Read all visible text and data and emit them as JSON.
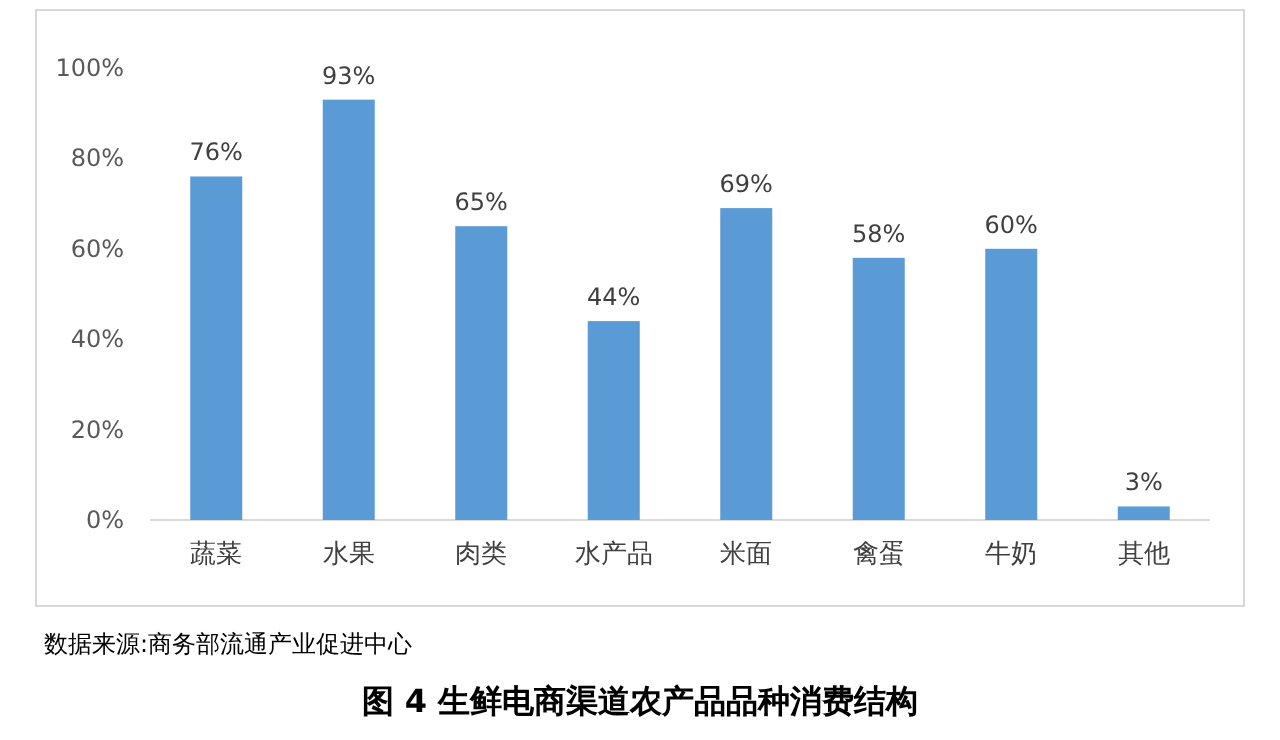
{
  "chart_data": {
    "type": "bar",
    "title": "图 4 生鲜电商渠道农产品品种消费结构",
    "categories": [
      "蔬菜",
      "水果",
      "肉类",
      "水产品",
      "米面",
      "禽蛋",
      "牛奶",
      "其他"
    ],
    "values": [
      76,
      93,
      65,
      44,
      69,
      58,
      60,
      3
    ],
    "color": "#5b9bd5",
    "ylim": [
      0,
      100
    ],
    "yticks": [
      {
        "value": 0,
        "label": "0%"
      },
      {
        "value": 20,
        "label": "20%"
      },
      {
        "value": 40,
        "label": "40%"
      },
      {
        "value": 60,
        "label": "60%"
      },
      {
        "value": 80,
        "label": "80%"
      },
      {
        "value": 100,
        "label": "100%"
      }
    ],
    "value_labels": [
      "76%",
      "93%",
      "65%",
      "44%",
      "69%",
      "58%",
      "60%",
      "3%"
    ],
    "grid": false,
    "annotations": [
      "数据来源:商务部流通产业促进中心"
    ]
  }
}
